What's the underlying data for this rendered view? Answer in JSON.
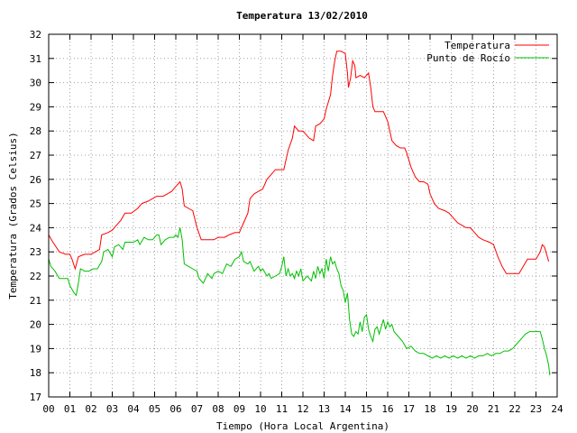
{
  "chart_data": {
    "type": "line",
    "title": "Temperatura 13/02/2010",
    "xlabel": "Tiempo (Hora Local Argentina)",
    "ylabel": "Temperatura (Grados Celsius)",
    "xlim": [
      0,
      24
    ],
    "ylim": [
      17,
      32
    ],
    "xticks": [
      "00",
      "01",
      "02",
      "03",
      "04",
      "05",
      "06",
      "07",
      "08",
      "09",
      "10",
      "11",
      "12",
      "13",
      "14",
      "15",
      "16",
      "17",
      "18",
      "19",
      "20",
      "21",
      "22",
      "23",
      "24"
    ],
    "yticks": [
      "17",
      "18",
      "19",
      "20",
      "21",
      "22",
      "23",
      "24",
      "25",
      "26",
      "27",
      "28",
      "29",
      "30",
      "31",
      "32"
    ],
    "grid": true,
    "legend_position": "top-right",
    "colors": {
      "Temperatura": "#ff0000",
      "Punto de Rocío": "#00c000",
      "grid": "#a0a0a0"
    },
    "series": [
      {
        "name": "Temperatura",
        "color": "#ff0000",
        "points": [
          [
            0.0,
            23.7
          ],
          [
            0.2,
            23.4
          ],
          [
            0.5,
            23.0
          ],
          [
            0.8,
            22.9
          ],
          [
            1.0,
            22.9
          ],
          [
            1.1,
            22.7
          ],
          [
            1.25,
            22.3
          ],
          [
            1.4,
            22.8
          ],
          [
            1.7,
            22.9
          ],
          [
            2.0,
            22.9
          ],
          [
            2.2,
            23.0
          ],
          [
            2.4,
            23.1
          ],
          [
            2.5,
            23.7
          ],
          [
            2.8,
            23.8
          ],
          [
            3.0,
            23.9
          ],
          [
            3.2,
            24.1
          ],
          [
            3.4,
            24.3
          ],
          [
            3.6,
            24.6
          ],
          [
            3.9,
            24.6
          ],
          [
            4.2,
            24.8
          ],
          [
            4.4,
            25.0
          ],
          [
            4.7,
            25.1
          ],
          [
            4.9,
            25.2
          ],
          [
            5.1,
            25.3
          ],
          [
            5.4,
            25.3
          ],
          [
            5.6,
            25.4
          ],
          [
            5.8,
            25.5
          ],
          [
            6.0,
            25.7
          ],
          [
            6.2,
            25.9
          ],
          [
            6.3,
            25.6
          ],
          [
            6.4,
            24.9
          ],
          [
            6.6,
            24.8
          ],
          [
            6.8,
            24.7
          ],
          [
            7.0,
            24.0
          ],
          [
            7.2,
            23.5
          ],
          [
            7.5,
            23.5
          ],
          [
            7.8,
            23.5
          ],
          [
            8.0,
            23.6
          ],
          [
            8.3,
            23.6
          ],
          [
            8.5,
            23.7
          ],
          [
            8.8,
            23.8
          ],
          [
            9.0,
            23.8
          ],
          [
            9.2,
            24.2
          ],
          [
            9.4,
            24.6
          ],
          [
            9.5,
            25.2
          ],
          [
            9.7,
            25.4
          ],
          [
            9.9,
            25.5
          ],
          [
            10.1,
            25.6
          ],
          [
            10.3,
            26.0
          ],
          [
            10.5,
            26.2
          ],
          [
            10.7,
            26.4
          ],
          [
            10.9,
            26.4
          ],
          [
            11.1,
            26.4
          ],
          [
            11.3,
            27.2
          ],
          [
            11.5,
            27.7
          ],
          [
            11.6,
            28.2
          ],
          [
            11.8,
            28.0
          ],
          [
            12.0,
            28.0
          ],
          [
            12.3,
            27.7
          ],
          [
            12.5,
            27.6
          ],
          [
            12.6,
            28.2
          ],
          [
            12.8,
            28.3
          ],
          [
            13.0,
            28.5
          ],
          [
            13.1,
            28.9
          ],
          [
            13.3,
            29.5
          ],
          [
            13.4,
            30.3
          ],
          [
            13.5,
            30.9
          ],
          [
            13.6,
            31.3
          ],
          [
            13.8,
            31.3
          ],
          [
            14.0,
            31.2
          ],
          [
            14.1,
            30.4
          ],
          [
            14.15,
            29.8
          ],
          [
            14.25,
            30.2
          ],
          [
            14.35,
            30.9
          ],
          [
            14.45,
            30.7
          ],
          [
            14.5,
            30.2
          ],
          [
            14.7,
            30.3
          ],
          [
            14.9,
            30.2
          ],
          [
            15.0,
            30.3
          ],
          [
            15.1,
            30.4
          ],
          [
            15.2,
            29.8
          ],
          [
            15.3,
            29.0
          ],
          [
            15.4,
            28.8
          ],
          [
            15.6,
            28.8
          ],
          [
            15.8,
            28.8
          ],
          [
            16.0,
            28.4
          ],
          [
            16.2,
            27.6
          ],
          [
            16.4,
            27.4
          ],
          [
            16.6,
            27.3
          ],
          [
            16.8,
            27.3
          ],
          [
            16.9,
            27.1
          ],
          [
            17.1,
            26.5
          ],
          [
            17.3,
            26.1
          ],
          [
            17.5,
            25.9
          ],
          [
            17.7,
            25.9
          ],
          [
            17.9,
            25.8
          ],
          [
            18.0,
            25.4
          ],
          [
            18.2,
            25.0
          ],
          [
            18.4,
            24.8
          ],
          [
            18.7,
            24.7
          ],
          [
            18.9,
            24.6
          ],
          [
            19.1,
            24.4
          ],
          [
            19.3,
            24.2
          ],
          [
            19.5,
            24.1
          ],
          [
            19.7,
            24.0
          ],
          [
            19.9,
            24.0
          ],
          [
            20.1,
            23.8
          ],
          [
            20.3,
            23.6
          ],
          [
            20.5,
            23.5
          ],
          [
            20.8,
            23.4
          ],
          [
            21.0,
            23.3
          ],
          [
            21.2,
            22.8
          ],
          [
            21.4,
            22.4
          ],
          [
            21.6,
            22.1
          ],
          [
            21.8,
            22.1
          ],
          [
            22.0,
            22.1
          ],
          [
            22.2,
            22.1
          ],
          [
            22.4,
            22.4
          ],
          [
            22.6,
            22.7
          ],
          [
            22.8,
            22.7
          ],
          [
            23.0,
            22.7
          ],
          [
            23.2,
            23.0
          ],
          [
            23.3,
            23.3
          ],
          [
            23.4,
            23.2
          ],
          [
            23.5,
            22.9
          ],
          [
            23.6,
            22.6
          ]
        ]
      },
      {
        "name": "Punto de Rocío",
        "color": "#00c000",
        "points": [
          [
            0.0,
            22.7
          ],
          [
            0.1,
            22.4
          ],
          [
            0.3,
            22.2
          ],
          [
            0.5,
            21.9
          ],
          [
            0.7,
            21.9
          ],
          [
            0.9,
            21.9
          ],
          [
            1.0,
            21.6
          ],
          [
            1.2,
            21.3
          ],
          [
            1.3,
            21.2
          ],
          [
            1.4,
            21.7
          ],
          [
            1.5,
            22.3
          ],
          [
            1.7,
            22.2
          ],
          [
            1.9,
            22.2
          ],
          [
            2.1,
            22.3
          ],
          [
            2.3,
            22.3
          ],
          [
            2.5,
            22.6
          ],
          [
            2.6,
            23.0
          ],
          [
            2.8,
            23.1
          ],
          [
            3.0,
            22.8
          ],
          [
            3.1,
            23.2
          ],
          [
            3.3,
            23.3
          ],
          [
            3.5,
            23.1
          ],
          [
            3.6,
            23.4
          ],
          [
            3.8,
            23.4
          ],
          [
            4.0,
            23.4
          ],
          [
            4.2,
            23.5
          ],
          [
            4.3,
            23.3
          ],
          [
            4.5,
            23.6
          ],
          [
            4.7,
            23.5
          ],
          [
            4.9,
            23.5
          ],
          [
            5.1,
            23.7
          ],
          [
            5.2,
            23.7
          ],
          [
            5.3,
            23.3
          ],
          [
            5.5,
            23.5
          ],
          [
            5.7,
            23.6
          ],
          [
            5.9,
            23.6
          ],
          [
            6.0,
            23.7
          ],
          [
            6.1,
            23.6
          ],
          [
            6.2,
            24.0
          ],
          [
            6.3,
            23.5
          ],
          [
            6.4,
            22.5
          ],
          [
            6.6,
            22.4
          ],
          [
            6.8,
            22.3
          ],
          [
            7.0,
            22.2
          ],
          [
            7.1,
            21.9
          ],
          [
            7.3,
            21.7
          ],
          [
            7.5,
            22.1
          ],
          [
            7.7,
            21.9
          ],
          [
            7.8,
            22.1
          ],
          [
            8.0,
            22.2
          ],
          [
            8.2,
            22.1
          ],
          [
            8.4,
            22.5
          ],
          [
            8.6,
            22.4
          ],
          [
            8.8,
            22.7
          ],
          [
            9.0,
            22.8
          ],
          [
            9.1,
            23.0
          ],
          [
            9.2,
            22.6
          ],
          [
            9.4,
            22.5
          ],
          [
            9.5,
            22.6
          ],
          [
            9.7,
            22.2
          ],
          [
            9.9,
            22.4
          ],
          [
            10.0,
            22.2
          ],
          [
            10.1,
            22.3
          ],
          [
            10.3,
            22.0
          ],
          [
            10.4,
            22.1
          ],
          [
            10.5,
            21.9
          ],
          [
            10.7,
            22.0
          ],
          [
            10.9,
            22.1
          ],
          [
            11.0,
            22.4
          ],
          [
            11.1,
            22.8
          ],
          [
            11.2,
            22.0
          ],
          [
            11.3,
            22.3
          ],
          [
            11.4,
            22.0
          ],
          [
            11.5,
            22.1
          ],
          [
            11.6,
            21.9
          ],
          [
            11.7,
            22.2
          ],
          [
            11.8,
            22.0
          ],
          [
            11.9,
            22.3
          ],
          [
            12.0,
            21.8
          ],
          [
            12.2,
            22.0
          ],
          [
            12.4,
            21.8
          ],
          [
            12.5,
            22.2
          ],
          [
            12.6,
            21.9
          ],
          [
            12.7,
            22.4
          ],
          [
            12.8,
            22.1
          ],
          [
            12.9,
            22.3
          ],
          [
            13.0,
            21.9
          ],
          [
            13.1,
            22.7
          ],
          [
            13.2,
            22.2
          ],
          [
            13.3,
            22.8
          ],
          [
            13.4,
            22.5
          ],
          [
            13.5,
            22.6
          ],
          [
            13.6,
            22.3
          ],
          [
            13.7,
            22.1
          ],
          [
            13.8,
            21.6
          ],
          [
            13.9,
            21.4
          ],
          [
            14.0,
            20.9
          ],
          [
            14.1,
            21.3
          ],
          [
            14.2,
            20.2
          ],
          [
            14.3,
            19.6
          ],
          [
            14.4,
            19.5
          ],
          [
            14.5,
            19.7
          ],
          [
            14.6,
            19.6
          ],
          [
            14.7,
            20.1
          ],
          [
            14.8,
            19.7
          ],
          [
            14.9,
            20.3
          ],
          [
            15.0,
            20.4
          ],
          [
            15.1,
            19.8
          ],
          [
            15.2,
            19.5
          ],
          [
            15.3,
            19.3
          ],
          [
            15.4,
            19.8
          ],
          [
            15.5,
            19.9
          ],
          [
            15.6,
            19.6
          ],
          [
            15.7,
            19.9
          ],
          [
            15.8,
            20.2
          ],
          [
            15.9,
            19.8
          ],
          [
            16.0,
            20.1
          ],
          [
            16.1,
            19.9
          ],
          [
            16.2,
            20.0
          ],
          [
            16.3,
            19.7
          ],
          [
            16.5,
            19.5
          ],
          [
            16.7,
            19.3
          ],
          [
            16.9,
            19.0
          ],
          [
            17.1,
            19.1
          ],
          [
            17.3,
            18.9
          ],
          [
            17.5,
            18.8
          ],
          [
            17.7,
            18.8
          ],
          [
            17.9,
            18.7
          ],
          [
            18.1,
            18.6
          ],
          [
            18.3,
            18.7
          ],
          [
            18.5,
            18.6
          ],
          [
            18.7,
            18.7
          ],
          [
            18.9,
            18.6
          ],
          [
            19.1,
            18.7
          ],
          [
            19.3,
            18.6
          ],
          [
            19.5,
            18.7
          ],
          [
            19.7,
            18.6
          ],
          [
            19.9,
            18.7
          ],
          [
            20.1,
            18.6
          ],
          [
            20.3,
            18.7
          ],
          [
            20.5,
            18.7
          ],
          [
            20.7,
            18.8
          ],
          [
            20.9,
            18.7
          ],
          [
            21.1,
            18.8
          ],
          [
            21.3,
            18.8
          ],
          [
            21.5,
            18.9
          ],
          [
            21.7,
            18.9
          ],
          [
            21.9,
            19.0
          ],
          [
            22.1,
            19.2
          ],
          [
            22.3,
            19.4
          ],
          [
            22.5,
            19.6
          ],
          [
            22.7,
            19.7
          ],
          [
            22.9,
            19.7
          ],
          [
            23.1,
            19.7
          ],
          [
            23.2,
            19.7
          ],
          [
            23.3,
            19.4
          ],
          [
            23.4,
            19.0
          ],
          [
            23.5,
            18.7
          ],
          [
            23.6,
            18.3
          ],
          [
            23.65,
            17.9
          ]
        ]
      }
    ]
  }
}
